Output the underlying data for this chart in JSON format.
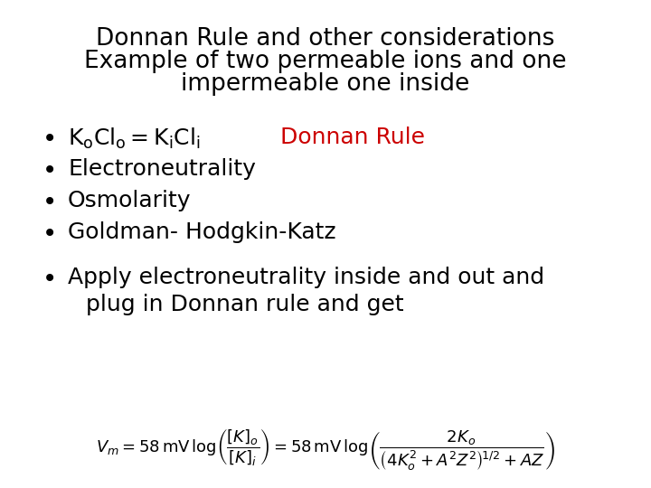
{
  "background_color": "#ffffff",
  "title_line1": "Donnan Rule and other considerations",
  "title_line2": "Example of two permeable ions and one",
  "title_line3": "impermeable one inside",
  "title_fontsize": 19,
  "title_color": "#000000",
  "bullet_fontsize": 18,
  "bullet_color": "#000000",
  "donnan_rule_color": "#cc0000",
  "formula_fontsize": 13,
  "formula_color": "#000000"
}
